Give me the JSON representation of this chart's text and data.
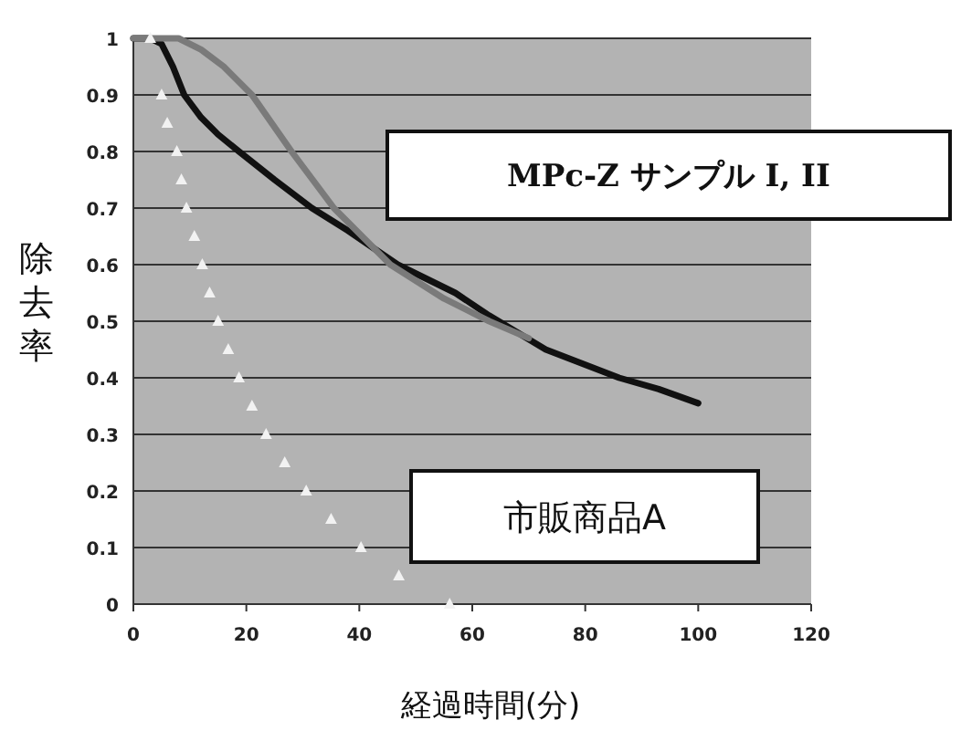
{
  "chart_data": {
    "type": "line",
    "xlabel": "経過時間(分)",
    "ylabel": "除去率",
    "xlim": [
      0,
      120
    ],
    "xticks": [
      0,
      20,
      40,
      60,
      80,
      100,
      120
    ],
    "ylim": [
      0,
      1
    ],
    "yticks": [
      0,
      0.1,
      0.2,
      0.3,
      0.4,
      0.5,
      0.6,
      0.7,
      0.8,
      0.9,
      1
    ],
    "grid": "y",
    "series": [
      {
        "type": "line",
        "marker": "none",
        "color": "#111111",
        "x": [
          0,
          3,
          5,
          7,
          9,
          12,
          15,
          18.7,
          25,
          31.6,
          38,
          46.8,
          57,
          63,
          73,
          86,
          93,
          100
        ],
        "values": [
          1,
          1,
          0.99,
          0.95,
          0.9,
          0.86,
          0.83,
          0.8,
          0.75,
          0.7,
          0.66,
          0.6,
          0.55,
          0.51,
          0.45,
          0.4,
          0.38,
          0.355
        ]
      },
      {
        "type": "line",
        "marker": "none",
        "color": "#7a7a7a",
        "x": [
          0,
          8,
          12,
          16,
          21,
          28,
          35.5,
          45.5,
          55,
          63,
          70
        ],
        "values": [
          1,
          1,
          0.98,
          0.95,
          0.9,
          0.8,
          0.7,
          0.6,
          0.54,
          0.5,
          0.47
        ]
      },
      {
        "type": "scatter",
        "marker": "triangle",
        "color": "#f2f2f2",
        "x": [
          3,
          5,
          6,
          7.7,
          8.5,
          9.4,
          10.8,
          12.2,
          13.5,
          15,
          16.8,
          18.7,
          21,
          23.5,
          26.8,
          30.6,
          35,
          40.3,
          47,
          56
        ],
        "values": [
          1,
          0.9,
          0.85,
          0.8,
          0.75,
          0.7,
          0.65,
          0.6,
          0.55,
          0.5,
          0.45,
          0.4,
          0.35,
          0.3,
          0.25,
          0.2,
          0.15,
          0.1,
          0.05,
          0
        ]
      }
    ],
    "annotations": [
      "MPc-Z サンプル I,  II",
      "市販商品A"
    ]
  }
}
